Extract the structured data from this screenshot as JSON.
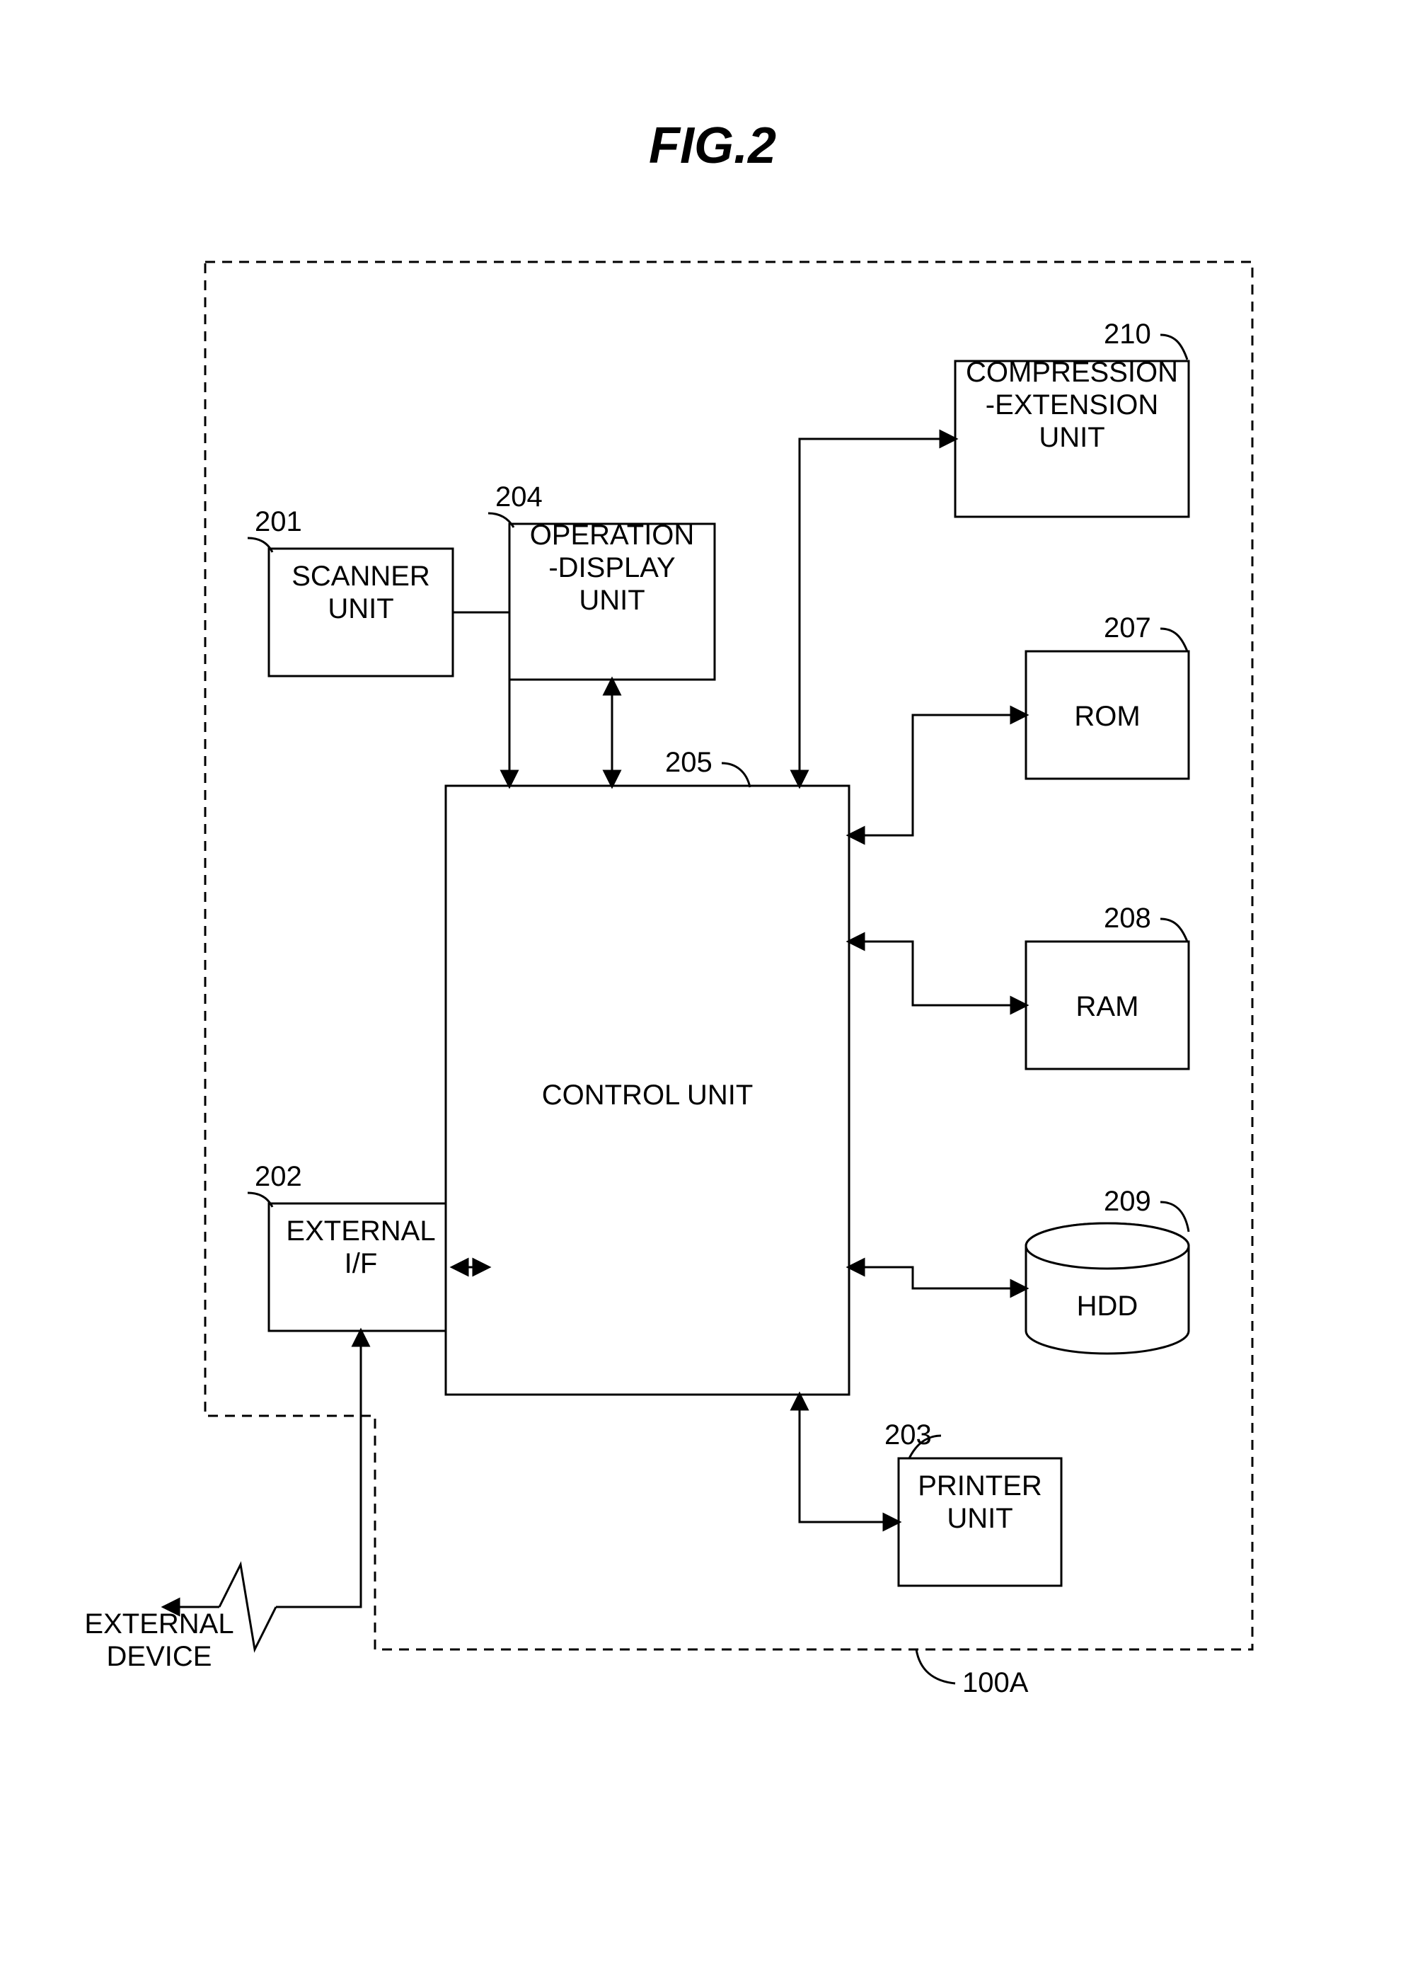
{
  "figure": {
    "title": "FIG.2",
    "system_ref": "100A",
    "external_device_label": "EXTERNAL\nDEVICE",
    "stroke": "#000000",
    "fill_bg": "#ffffff",
    "dash_pattern": "14 10",
    "line_width": 3,
    "title_fontsize": 72,
    "label_fontsize": 40,
    "blocks": {
      "scanner": {
        "ref": "201",
        "label": "SCANNER\nUNIT"
      },
      "ext_if": {
        "ref": "202",
        "label": "EXTERNAL\nI/F"
      },
      "op_disp": {
        "ref": "204",
        "label": "OPERATION\n-DISPLAY\nUNIT"
      },
      "control": {
        "ref": "205",
        "label": "CONTROL UNIT"
      },
      "printer": {
        "ref": "203",
        "label": "PRINTER\nUNIT"
      },
      "comp_ext": {
        "ref": "210",
        "label": "COMPRESSION\n-EXTENSION\nUNIT"
      },
      "rom": {
        "ref": "207",
        "label": "ROM"
      },
      "ram": {
        "ref": "208",
        "label": "RAM"
      },
      "hdd": {
        "ref": "209",
        "label": "HDD"
      }
    }
  }
}
